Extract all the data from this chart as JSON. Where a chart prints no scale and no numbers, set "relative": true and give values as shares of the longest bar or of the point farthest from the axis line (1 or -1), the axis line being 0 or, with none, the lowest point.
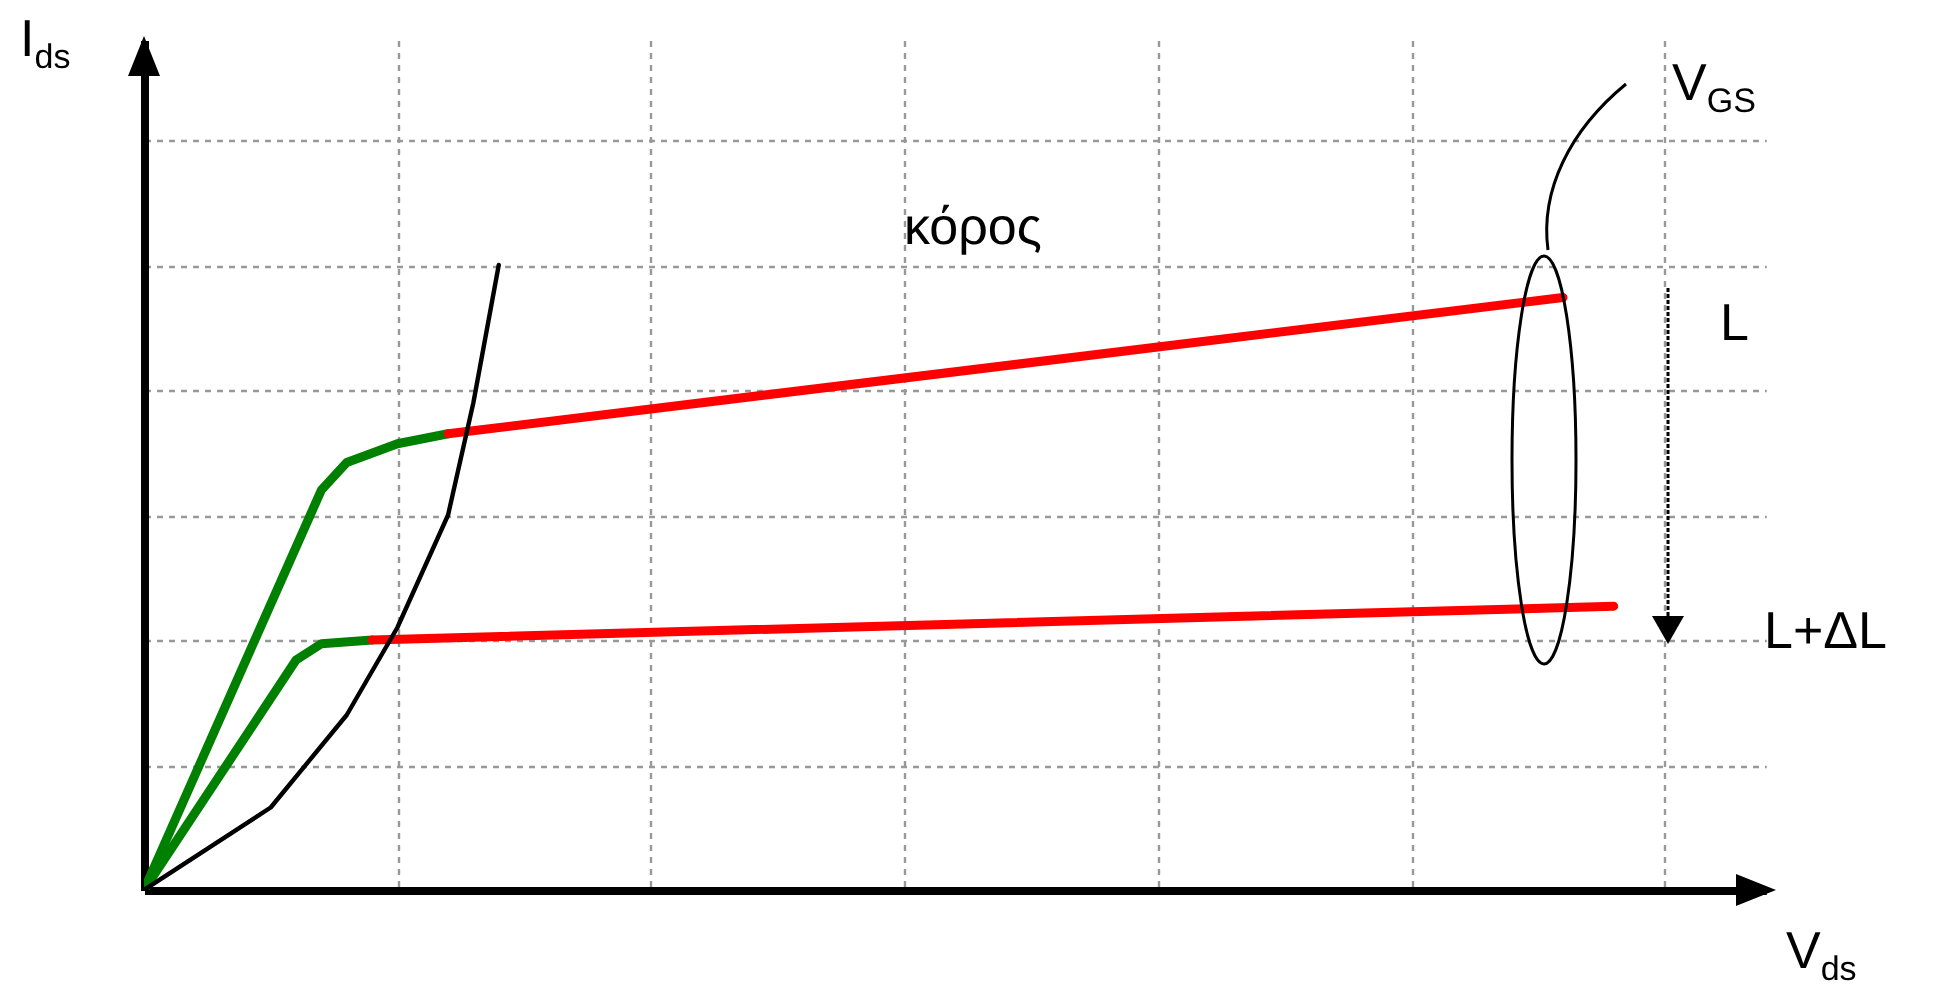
{
  "chart_data": {
    "type": "line",
    "xlabel": "V$_{ds}$",
    "ylabel": "I$_{ds}$",
    "relative": true,
    "grid": true,
    "categories": [
      null,
      null,
      null,
      null,
      null,
      null,
      null,
      null,
      null,
      null,
      null,
      null,
      null,
      null,
      null,
      null,
      null,
      null,
      null,
      null,
      null,
      null,
      null,
      null,
      null,
      null,
      null,
      null,
      null,
      null,
      null,
      null,
      null,
      null,
      null,
      null,
      null,
      null,
      null,
      null,
      null,
      null,
      null,
      null,
      null,
      null,
      null,
      null,
      null,
      null,
      null,
      null,
      null,
      null,
      null,
      null,
      null,
      null,
      null,
      null,
      null,
      null,
      null,
      null,
      null
    ],
    "series": [
      {
        "color": "#008000",
        "values": [
          0,
          null,
          null,
          null,
          null,
          null,
          null,
          0.64,
          0.684,
          null,
          0.714,
          null,
          0.73,
          null,
          null,
          null,
          null,
          null,
          null,
          null,
          null,
          null,
          null,
          null,
          null,
          null,
          null,
          null,
          null,
          null,
          null,
          null,
          null,
          null,
          null,
          null,
          null,
          null,
          null,
          null,
          null,
          null,
          null,
          null,
          null,
          null,
          null,
          null,
          null,
          null,
          null,
          null,
          null,
          null,
          null,
          null,
          null,
          null,
          null,
          null,
          null,
          null,
          null,
          null,
          null
        ]
      },
      {
        "color": "#008000",
        "values": [
          0,
          null,
          null,
          null,
          null,
          null,
          0.368,
          0.394,
          null,
          0.4,
          null,
          null,
          null,
          null,
          null,
          null,
          null,
          null,
          null,
          null,
          null,
          null,
          null,
          null,
          null,
          null,
          null,
          null,
          null,
          null,
          null,
          null,
          null,
          null,
          null,
          null,
          null,
          null,
          null,
          null,
          null,
          null,
          null,
          null,
          null,
          null,
          null,
          null,
          null,
          null,
          null,
          null,
          null,
          null,
          null,
          null,
          null,
          null,
          null,
          null,
          null,
          null,
          null,
          null,
          null
        ]
      },
      {
        "color": "#ff0000",
        "values": [
          null,
          null,
          null,
          null,
          null,
          null,
          null,
          null,
          null,
          null,
          null,
          null,
          0.73,
          null,
          null,
          null,
          null,
          null,
          null,
          null,
          null,
          null,
          null,
          null,
          null,
          null,
          null,
          null,
          null,
          null,
          null,
          null,
          null,
          null,
          null,
          null,
          null,
          null,
          null,
          null,
          null,
          null,
          null,
          null,
          null,
          null,
          null,
          null,
          null,
          null,
          null,
          null,
          null,
          null,
          null,
          null,
          0.948,
          null,
          null,
          null,
          null,
          null,
          null,
          null,
          null
        ]
      },
      {
        "color": "#ff0000",
        "values": [
          null,
          null,
          null,
          null,
          null,
          null,
          null,
          null,
          null,
          0.4,
          null,
          null,
          null,
          null,
          null,
          null,
          null,
          null,
          null,
          null,
          null,
          null,
          null,
          null,
          null,
          null,
          null,
          null,
          null,
          null,
          null,
          null,
          null,
          null,
          null,
          null,
          null,
          null,
          null,
          null,
          null,
          null,
          null,
          null,
          null,
          null,
          null,
          null,
          null,
          null,
          null,
          null,
          null,
          null,
          null,
          null,
          null,
          null,
          0.454,
          null,
          null,
          null,
          null,
          null,
          null
        ]
      },
      {
        "color": "#000000",
        "values": [
          0,
          null,
          null,
          null,
          null,
          0.132,
          null,
          null,
          0.28,
          null,
          0.42,
          null,
          0.6,
          0.78,
          1,
          null,
          null,
          null,
          null,
          null,
          null,
          null,
          null,
          null,
          null,
          null,
          null,
          null,
          null,
          null,
          null,
          null,
          null,
          null,
          null,
          null,
          null,
          null,
          null,
          null,
          null,
          null,
          null,
          null,
          null,
          null,
          null,
          null,
          null,
          null,
          null,
          null,
          null,
          null,
          null,
          null,
          null,
          null,
          null,
          null,
          null,
          null,
          null,
          null,
          null
        ]
      }
    ],
    "annotations": [
      "κόρος",
      "V$_{GS}$",
      "L",
      "L+ΔL"
    ]
  }
}
